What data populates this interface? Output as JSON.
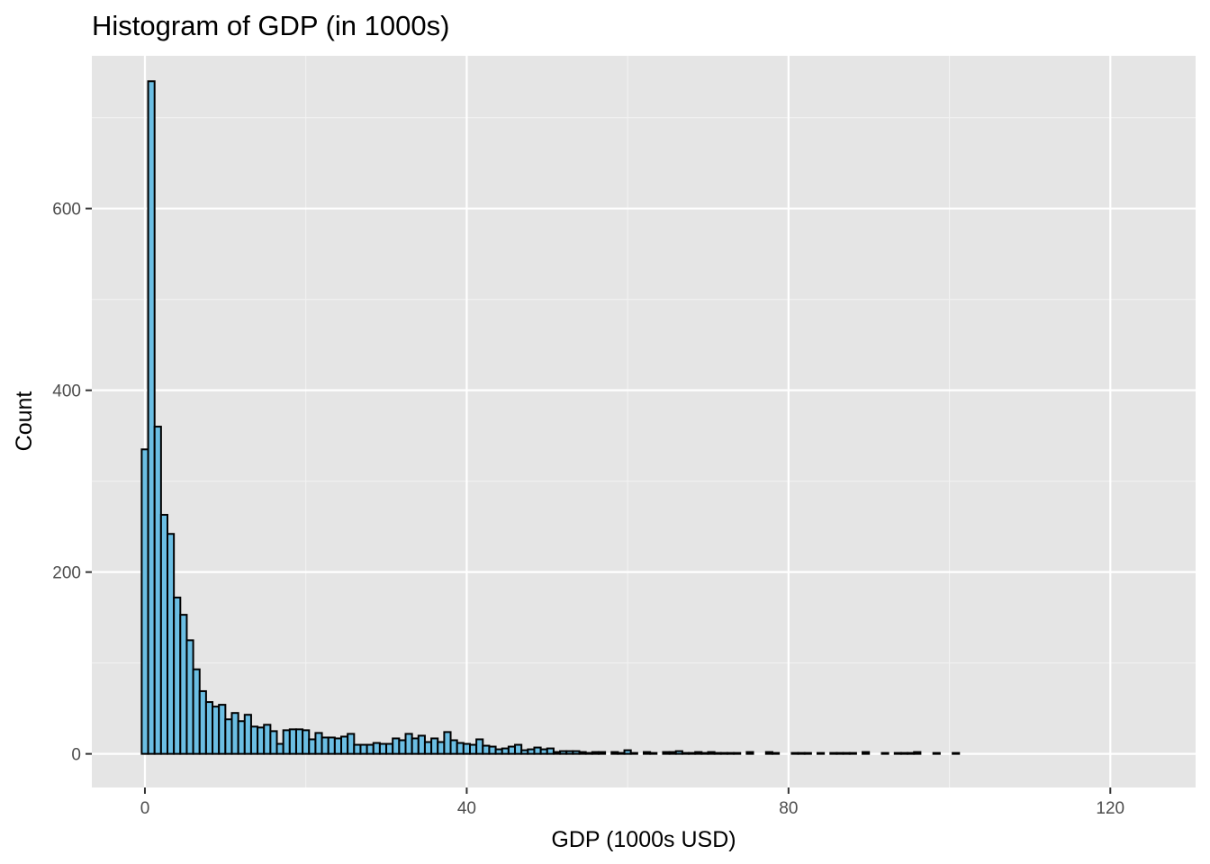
{
  "chart_data": {
    "type": "bar",
    "title": "Histogram of GDP (in 1000s)",
    "xlabel": "GDP (1000s USD)",
    "ylabel": "Count",
    "bin_width": 0.8,
    "bin_start": -0.4,
    "xlim": [
      -6.6,
      130.6
    ],
    "ylim": [
      -37,
      768
    ],
    "x_ticks": [
      0,
      40,
      80,
      120
    ],
    "x_tick_labels": [
      "0",
      "40",
      "80",
      "120"
    ],
    "y_ticks": [
      0,
      200,
      400,
      600
    ],
    "y_tick_labels": [
      "0",
      "200",
      "400",
      "600"
    ],
    "values": [
      335,
      740,
      360,
      263,
      242,
      172,
      153,
      125,
      93,
      69,
      57,
      52,
      54,
      38,
      45,
      36,
      43,
      30,
      29,
      32,
      25,
      11,
      26,
      27,
      27,
      26,
      16,
      23,
      18,
      18,
      17,
      19,
      22,
      10,
      10,
      10,
      12,
      11,
      11,
      17,
      15,
      22,
      17,
      20,
      13,
      17,
      13,
      24,
      15,
      12,
      11,
      10,
      16,
      9,
      8,
      5,
      6,
      8,
      10,
      4,
      5,
      7,
      5,
      6,
      2,
      3,
      3,
      3,
      2,
      1,
      2,
      2,
      0,
      2,
      1,
      4,
      1,
      0,
      2,
      1,
      0,
      2,
      2,
      3,
      1,
      1,
      2,
      1,
      2,
      1,
      1,
      1,
      1,
      0,
      2,
      0,
      0,
      2,
      1,
      0,
      0,
      1,
      1,
      1,
      0,
      1,
      0,
      1,
      1,
      1,
      1,
      0,
      2,
      0,
      0,
      1,
      0,
      1,
      1,
      1,
      2,
      0,
      0,
      1,
      0,
      0,
      1
    ],
    "fill_color": "#6BBEE3",
    "edge_color": "#000000",
    "panel_background": "#E5E5E5",
    "grid": true
  }
}
